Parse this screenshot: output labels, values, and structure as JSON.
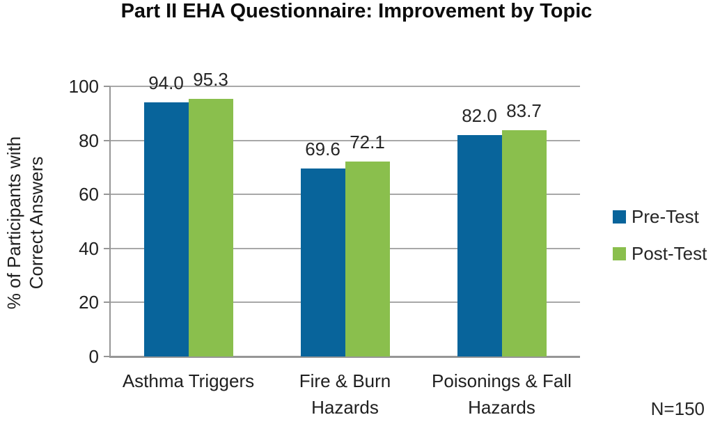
{
  "title": "Part II EHA Questionnaire: Improvement by Topic",
  "y_axis_title": "% of Participants with\nCorrect Answers",
  "note": "N=150",
  "colors": {
    "pre_test": "#08649b",
    "post_test": "#8abf4d",
    "gridline": "#a8a8a8",
    "axis": "#969696"
  },
  "chart_data": {
    "type": "bar",
    "title": "Part II EHA Questionnaire: Improvement by Topic",
    "categories": [
      "Asthma Triggers",
      "Fire & Burn\nHazards",
      "Poisonings & Fall\nHazards"
    ],
    "series": [
      {
        "name": "Pre-Test",
        "color": "#08649b",
        "values": [
          94.0,
          69.6,
          82.0
        ]
      },
      {
        "name": "Post-Test",
        "color": "#8abf4d",
        "values": [
          95.3,
          72.1,
          83.7
        ]
      }
    ],
    "xlabel": "",
    "ylabel": "% of Participants with Correct Answers",
    "ylim": [
      0,
      100
    ],
    "yticks": [
      0,
      20,
      40,
      60,
      80,
      100
    ],
    "grid": true,
    "value_labels": true,
    "value_label_format": "one_decimal",
    "legend_position": "right",
    "annotation": "N=150"
  }
}
